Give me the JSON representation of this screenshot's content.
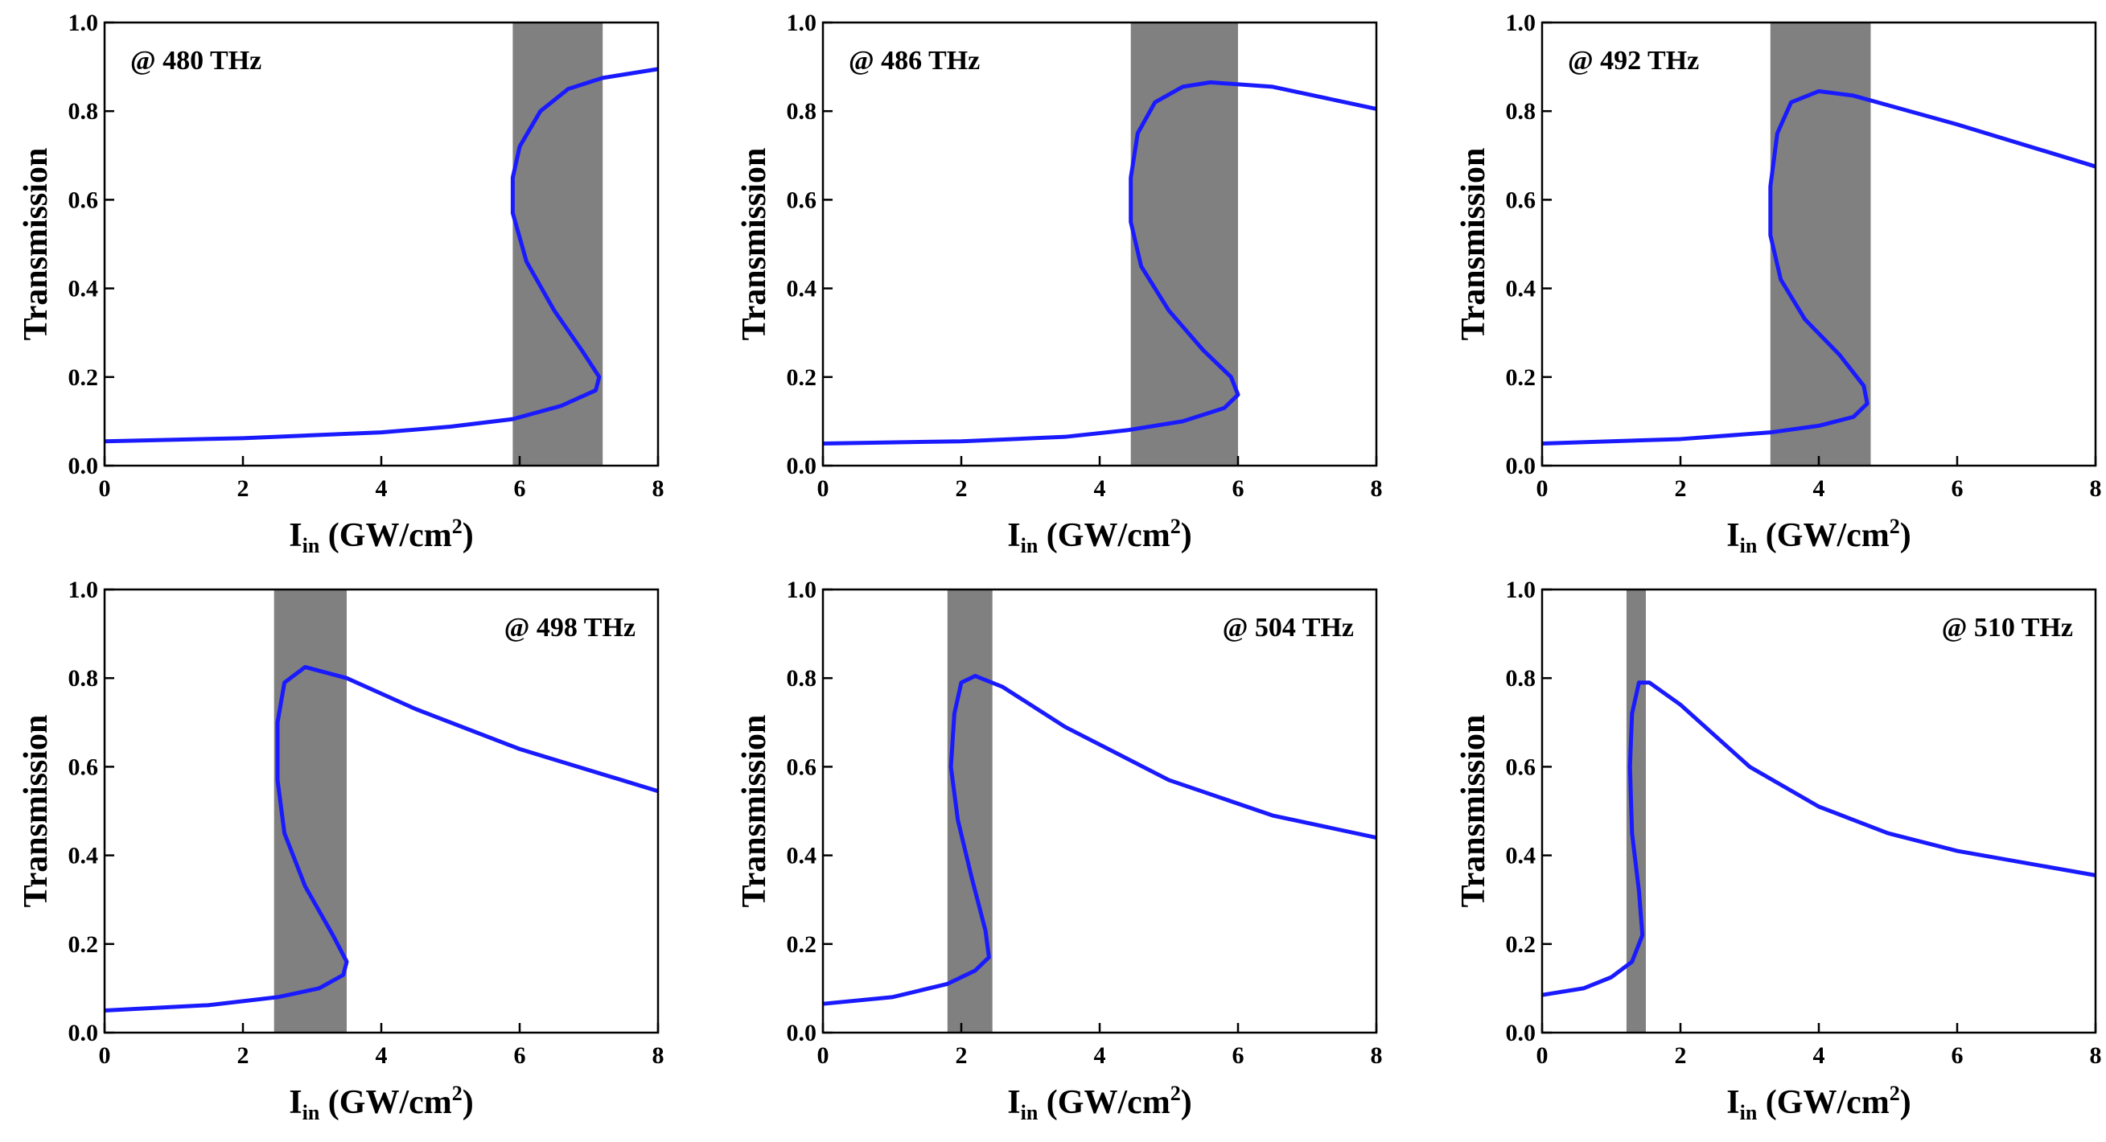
{
  "chart_data": [
    {
      "type": "line",
      "annotation": "@ 480 THz",
      "annotation_corner": "upper left",
      "ylabel": "Transmission",
      "xlabel": [
        "I",
        "in",
        " (GW/cm",
        "2",
        ")"
      ],
      "xlim": [
        0,
        8
      ],
      "ylim": [
        0,
        1
      ],
      "xticks": [
        0,
        2,
        4,
        6,
        8
      ],
      "yticks": [
        {
          "value": 0,
          "label": "0.0"
        },
        {
          "value": 0.2,
          "label": "0.2"
        },
        {
          "value": 0.4,
          "label": "0.4"
        },
        {
          "value": 0.6,
          "label": "0.6"
        },
        {
          "value": 0.8,
          "label": "0.8"
        },
        {
          "value": 1,
          "label": "1.0"
        }
      ],
      "color": "#1a1aff",
      "shaded_xrange": [
        5.9,
        7.2
      ],
      "shade_color": "#808080",
      "x": [
        0,
        2,
        4,
        5,
        5.9,
        6.6,
        7.1,
        7.15,
        6.9,
        6.5,
        6.1,
        5.9,
        5.9,
        6.0,
        6.3,
        6.7,
        7.2,
        8
      ],
      "values": [
        0.055,
        0.062,
        0.075,
        0.088,
        0.105,
        0.135,
        0.17,
        0.2,
        0.26,
        0.35,
        0.46,
        0.57,
        0.65,
        0.72,
        0.8,
        0.85,
        0.875,
        0.895
      ]
    },
    {
      "type": "line",
      "annotation": "@ 486 THz",
      "annotation_corner": "upper left",
      "ylabel": "Transmission",
      "xlabel": [
        "I",
        "in",
        " (GW/cm",
        "2",
        ")"
      ],
      "xlim": [
        0,
        8
      ],
      "ylim": [
        0,
        1
      ],
      "xticks": [
        0,
        2,
        4,
        6,
        8
      ],
      "yticks": [
        {
          "value": 0,
          "label": "0.0"
        },
        {
          "value": 0.2,
          "label": "0.2"
        },
        {
          "value": 0.4,
          "label": "0.4"
        },
        {
          "value": 0.6,
          "label": "0.6"
        },
        {
          "value": 0.8,
          "label": "0.8"
        },
        {
          "value": 1,
          "label": "1.0"
        }
      ],
      "color": "#1a1aff",
      "shaded_xrange": [
        4.45,
        6.0
      ],
      "shade_color": "#808080",
      "x": [
        0,
        2,
        3.5,
        4.4,
        5.2,
        5.8,
        6.0,
        5.9,
        5.5,
        5.0,
        4.6,
        4.45,
        4.45,
        4.55,
        4.8,
        5.2,
        5.6,
        6.5,
        8
      ],
      "values": [
        0.05,
        0.055,
        0.065,
        0.08,
        0.1,
        0.13,
        0.16,
        0.2,
        0.26,
        0.35,
        0.45,
        0.55,
        0.65,
        0.75,
        0.82,
        0.855,
        0.865,
        0.855,
        0.805
      ]
    },
    {
      "type": "line",
      "annotation": "@ 492 THz",
      "annotation_corner": "upper left",
      "ylabel": "Transmission",
      "xlabel": [
        "I",
        "in",
        " (GW/cm",
        "2",
        ")"
      ],
      "xlim": [
        0,
        8
      ],
      "ylim": [
        0,
        1
      ],
      "xticks": [
        0,
        2,
        4,
        6,
        8
      ],
      "yticks": [
        {
          "value": 0,
          "label": "0.0"
        },
        {
          "value": 0.2,
          "label": "0.2"
        },
        {
          "value": 0.4,
          "label": "0.4"
        },
        {
          "value": 0.6,
          "label": "0.6"
        },
        {
          "value": 0.8,
          "label": "0.8"
        },
        {
          "value": 1,
          "label": "1.0"
        }
      ],
      "color": "#1a1aff",
      "shaded_xrange": [
        3.3,
        4.75
      ],
      "shade_color": "#808080",
      "x": [
        0,
        2,
        3.3,
        4.0,
        4.5,
        4.7,
        4.65,
        4.3,
        3.8,
        3.45,
        3.3,
        3.3,
        3.4,
        3.6,
        4.0,
        4.5,
        6,
        8
      ],
      "values": [
        0.05,
        0.06,
        0.075,
        0.09,
        0.11,
        0.14,
        0.18,
        0.25,
        0.33,
        0.42,
        0.52,
        0.63,
        0.75,
        0.82,
        0.845,
        0.835,
        0.77,
        0.675
      ]
    },
    {
      "type": "line",
      "annotation": "@ 498 THz",
      "annotation_corner": "upper right",
      "ylabel": "Transmission",
      "xlabel": [
        "I",
        "in",
        " (GW/cm",
        "2",
        ")"
      ],
      "xlim": [
        0,
        8
      ],
      "ylim": [
        0,
        1
      ],
      "xticks": [
        0,
        2,
        4,
        6,
        8
      ],
      "yticks": [
        {
          "value": 0,
          "label": "0.0"
        },
        {
          "value": 0.2,
          "label": "0.2"
        },
        {
          "value": 0.4,
          "label": "0.4"
        },
        {
          "value": 0.6,
          "label": "0.6"
        },
        {
          "value": 0.8,
          "label": "0.8"
        },
        {
          "value": 1,
          "label": "1.0"
        }
      ],
      "color": "#1a1aff",
      "shaded_xrange": [
        2.45,
        3.5
      ],
      "shade_color": "#808080",
      "x": [
        0,
        1.5,
        2.5,
        3.1,
        3.45,
        3.5,
        3.3,
        2.9,
        2.6,
        2.5,
        2.5,
        2.6,
        2.9,
        3.5,
        4.5,
        6,
        8
      ],
      "values": [
        0.05,
        0.062,
        0.08,
        0.1,
        0.13,
        0.16,
        0.22,
        0.33,
        0.45,
        0.57,
        0.7,
        0.79,
        0.825,
        0.8,
        0.73,
        0.64,
        0.545
      ]
    },
    {
      "type": "line",
      "annotation": "@ 504 THz",
      "annotation_corner": "upper right",
      "ylabel": "Transmission",
      "xlabel": [
        "I",
        "in",
        " (GW/cm",
        "2",
        ")"
      ],
      "xlim": [
        0,
        8
      ],
      "ylim": [
        0,
        1
      ],
      "xticks": [
        0,
        2,
        4,
        6,
        8
      ],
      "yticks": [
        {
          "value": 0,
          "label": "0.0"
        },
        {
          "value": 0.2,
          "label": "0.2"
        },
        {
          "value": 0.4,
          "label": "0.4"
        },
        {
          "value": 0.6,
          "label": "0.6"
        },
        {
          "value": 0.8,
          "label": "0.8"
        },
        {
          "value": 1,
          "label": "1.0"
        }
      ],
      "color": "#1a1aff",
      "shaded_xrange": [
        1.8,
        2.45
      ],
      "shade_color": "#808080",
      "x": [
        0,
        1,
        1.8,
        2.2,
        2.4,
        2.35,
        2.15,
        1.95,
        1.85,
        1.9,
        2.0,
        2.2,
        2.6,
        3.5,
        5,
        6.5,
        8
      ],
      "values": [
        0.065,
        0.08,
        0.11,
        0.14,
        0.17,
        0.23,
        0.35,
        0.48,
        0.6,
        0.72,
        0.79,
        0.805,
        0.78,
        0.69,
        0.57,
        0.49,
        0.44
      ]
    },
    {
      "type": "line",
      "annotation": "@ 510 THz",
      "annotation_corner": "upper right",
      "ylabel": "Transmission",
      "xlabel": [
        "I",
        "in",
        " (GW/cm",
        "2",
        ")"
      ],
      "xlim": [
        0,
        8
      ],
      "ylim": [
        0,
        1
      ],
      "xticks": [
        0,
        2,
        4,
        6,
        8
      ],
      "yticks": [
        {
          "value": 0,
          "label": "0.0"
        },
        {
          "value": 0.2,
          "label": "0.2"
        },
        {
          "value": 0.4,
          "label": "0.4"
        },
        {
          "value": 0.6,
          "label": "0.6"
        },
        {
          "value": 0.8,
          "label": "0.8"
        },
        {
          "value": 1,
          "label": "1.0"
        }
      ],
      "color": "#1a1aff",
      "shaded_xrange": [
        1.22,
        1.5
      ],
      "shade_color": "#808080",
      "x": [
        0,
        0.6,
        1.0,
        1.3,
        1.45,
        1.4,
        1.3,
        1.27,
        1.3,
        1.4,
        1.55,
        2,
        3,
        4,
        5,
        6,
        8
      ],
      "values": [
        0.085,
        0.1,
        0.125,
        0.16,
        0.22,
        0.32,
        0.45,
        0.6,
        0.72,
        0.79,
        0.79,
        0.74,
        0.6,
        0.51,
        0.45,
        0.41,
        0.355
      ]
    }
  ]
}
